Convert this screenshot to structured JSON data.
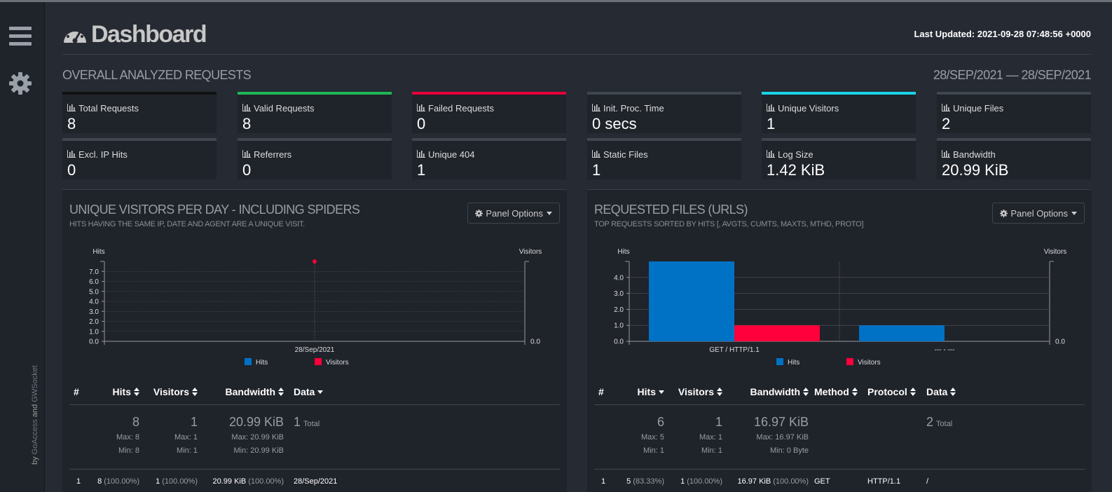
{
  "header": {
    "title": "Dashboard",
    "last_updated": "Last Updated: 2021-09-28 07:48:56 +0000"
  },
  "sidebar": {
    "credits_prefix": "by ",
    "credits_link1": "GoAccess",
    "credits_mid": " and ",
    "credits_link2": "GWSocket"
  },
  "overall": {
    "title": "OVERALL ANALYZED REQUESTS",
    "range": "28/SEP/2021 — 28/SEP/2021",
    "metrics": [
      {
        "label": "Total Requests",
        "value": "8",
        "color": "#111111"
      },
      {
        "label": "Valid Requests",
        "value": "8",
        "color": "#1fb655"
      },
      {
        "label": "Failed Requests",
        "value": "0",
        "color": "#e5003a"
      },
      {
        "label": "Init. Proc. Time",
        "value": "0 secs",
        "color": "#3f4650"
      },
      {
        "label": "Unique Visitors",
        "value": "1",
        "color": "#18d3e5"
      },
      {
        "label": "Unique Files",
        "value": "2",
        "color": "#3f4650"
      },
      {
        "label": "Excl. IP Hits",
        "value": "0",
        "color": "#3f4650"
      },
      {
        "label": "Referrers",
        "value": "0",
        "color": "#3f4650"
      },
      {
        "label": "Unique 404",
        "value": "1",
        "color": "#3f4650"
      },
      {
        "label": "Static Files",
        "value": "1",
        "color": "#3f4650"
      },
      {
        "label": "Log Size",
        "value": "1.42 KiB",
        "color": "#3f4650"
      },
      {
        "label": "Bandwidth",
        "value": "20.99 KiB",
        "color": "#3f4650"
      }
    ]
  },
  "visitors_panel": {
    "title": "UNIQUE VISITORS PER DAY - INCLUDING SPIDERS",
    "subtitle": "HITS HAVING THE SAME IP, DATE AND AGENT ARE A UNIQUE VISIT.",
    "panel_options": "Panel Options",
    "columns": [
      "#",
      "Hits",
      "Visitors",
      "Bandwidth",
      "Data"
    ],
    "summary": {
      "hits": "8",
      "hits_max": "Max: 8",
      "hits_min": "Min: 8",
      "visitors": "1",
      "visitors_max": "Max: 1",
      "visitors_min": "Min: 1",
      "bandwidth": "20.99 KiB",
      "bandwidth_max": "Max: 20.99 KiB",
      "bandwidth_min": "Min: 20.99 KiB",
      "data_count": "1",
      "data_label": "Total"
    },
    "row": {
      "num": "1",
      "hits": "8",
      "hits_pct": " (100.00%)",
      "visitors": "1",
      "visitors_pct": " (100.00%)",
      "bandwidth": "20.99 KiB",
      "bandwidth_pct": " (100.00%)",
      "data": "28/Sep/2021"
    }
  },
  "files_panel": {
    "title": "REQUESTED FILES (URLS)",
    "subtitle": "TOP REQUESTS SORTED BY HITS [, AVGTS, CUMTS, MAXTS, MTHD, PROTO]",
    "panel_options": "Panel Options",
    "columns": [
      "#",
      "Hits",
      "Visitors",
      "Bandwidth",
      "Method",
      "Protocol",
      "Data"
    ],
    "summary": {
      "hits": "6",
      "hits_max": "Max: 5",
      "hits_min": "Min: 1",
      "visitors": "1",
      "visitors_max": "Max: 1",
      "visitors_min": "Min: 1",
      "bandwidth": "16.97 KiB",
      "bandwidth_max": "Max: 16.97 KiB",
      "bandwidth_min": "Min: 0 Byte",
      "data_count": "2",
      "data_label": "Total"
    },
    "row": {
      "num": "1",
      "hits": "5",
      "hits_pct": " (83.33%)",
      "visitors": "1",
      "visitors_pct": " (100.00%)",
      "bandwidth": "16.97 KiB",
      "bandwidth_pct": " (100.00%)",
      "method": "GET",
      "protocol": "HTTP/1.1",
      "data": "/"
    }
  },
  "chart_data": [
    {
      "type": "line",
      "ylabel": "Hits",
      "y2label": "Visitors",
      "categories": [
        "28/Sep/2021"
      ],
      "yticks": [
        "0.0",
        "1.0",
        "2.0",
        "3.0",
        "4.0",
        "5.0",
        "6.0",
        "7.0"
      ],
      "y2ticks": [
        "0.0"
      ],
      "ylim": [
        0,
        8
      ],
      "grid": true,
      "legend_position": "bottom",
      "series": [
        {
          "name": "Hits",
          "values": [
            8
          ],
          "color": "#0072c6"
        },
        {
          "name": "Visitors",
          "values": [
            1
          ],
          "color": "#ff003c"
        }
      ]
    },
    {
      "type": "bar",
      "ylabel": "Hits",
      "y2label": "Visitors",
      "categories": [
        "GET / HTTP/1.1",
        "--- - ---"
      ],
      "yticks": [
        "0.0",
        "1.0",
        "2.0",
        "3.0",
        "4.0"
      ],
      "y2ticks": [
        "0.0"
      ],
      "ylim": [
        0,
        5
      ],
      "grid": true,
      "legend_position": "bottom",
      "series": [
        {
          "name": "Hits",
          "values": [
            5,
            1
          ],
          "color": "#0072c6"
        },
        {
          "name": "Visitors",
          "values": [
            1,
            0
          ],
          "color": "#ff003c"
        }
      ]
    }
  ]
}
